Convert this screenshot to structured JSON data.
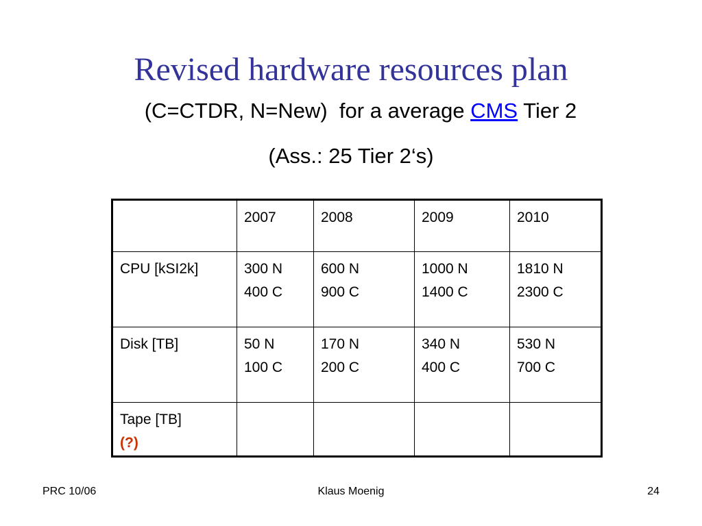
{
  "slide": {
    "title": "Revised hardware resources plan",
    "subtitle_prefix": "(C=CTDR, N=New)  for a average ",
    "subtitle_link": "CMS",
    "subtitle_suffix": " Tier 2",
    "assumption": "(Ass.: 25 Tier 2‘s)"
  },
  "table": {
    "header": [
      "",
      "2007",
      "2008",
      "2009",
      "2010"
    ],
    "rows": [
      {
        "label": "CPU [kSI2k]",
        "cells": [
          [
            "300 N",
            "400 C"
          ],
          [
            "600 N",
            "900 C"
          ],
          [
            "1000 N",
            "1400 C"
          ],
          [
            "1810 N",
            "2300 C"
          ]
        ]
      },
      {
        "label": "Disk [TB]",
        "cells": [
          [
            "50 N",
            "100 C"
          ],
          [
            "170 N",
            "200 C"
          ],
          [
            "340 N",
            "400 C"
          ],
          [
            "530 N",
            "700 C"
          ]
        ]
      },
      {
        "label": "Tape [TB]",
        "note": "(?)",
        "cells": [
          [],
          [],
          [],
          []
        ]
      }
    ]
  },
  "footer": {
    "left": "PRC 10/06",
    "center": "Klaus Moenig",
    "right": "24"
  },
  "colors": {
    "title": "#333399",
    "link": "#0000ff",
    "note": "#cc3300"
  }
}
